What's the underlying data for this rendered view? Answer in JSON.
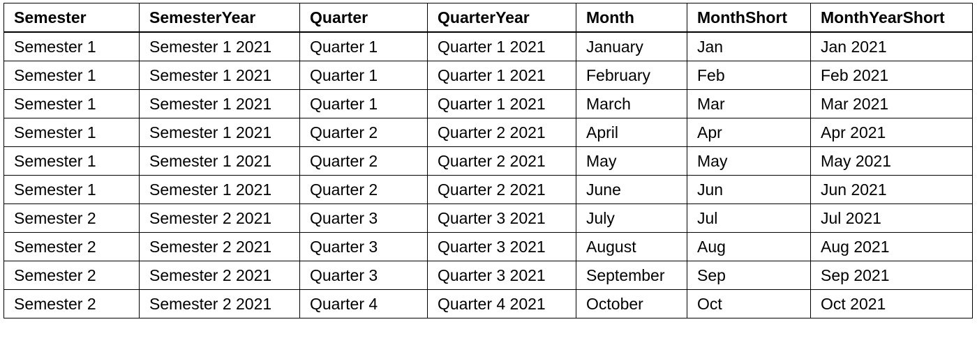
{
  "table": {
    "headers": [
      "Semester",
      "SemesterYear",
      "Quarter",
      "QuarterYear",
      "Month",
      "MonthShort",
      "MonthYearShort"
    ],
    "rows": [
      [
        "Semester 1",
        "Semester 1 2021",
        "Quarter 1",
        "Quarter 1 2021",
        "January",
        "Jan",
        "Jan 2021"
      ],
      [
        "Semester 1",
        "Semester 1 2021",
        "Quarter 1",
        "Quarter 1 2021",
        "February",
        "Feb",
        "Feb 2021"
      ],
      [
        "Semester 1",
        "Semester 1 2021",
        "Quarter 1",
        "Quarter 1 2021",
        "March",
        "Mar",
        "Mar 2021"
      ],
      [
        "Semester 1",
        "Semester 1 2021",
        "Quarter 2",
        "Quarter 2 2021",
        "April",
        "Apr",
        "Apr 2021"
      ],
      [
        "Semester 1",
        "Semester 1 2021",
        "Quarter 2",
        "Quarter 2 2021",
        "May",
        "May",
        "May 2021"
      ],
      [
        "Semester 1",
        "Semester 1 2021",
        "Quarter 2",
        "Quarter 2 2021",
        "June",
        "Jun",
        "Jun 2021"
      ],
      [
        "Semester 2",
        "Semester 2 2021",
        "Quarter 3",
        "Quarter 3 2021",
        "July",
        "Jul",
        "Jul 2021"
      ],
      [
        "Semester 2",
        "Semester 2 2021",
        "Quarter 3",
        "Quarter 3 2021",
        "August",
        "Aug",
        "Aug 2021"
      ],
      [
        "Semester 2",
        "Semester 2 2021",
        "Quarter 3",
        "Quarter 3 2021",
        "September",
        "Sep",
        "Sep 2021"
      ],
      [
        "Semester 2",
        "Semester 2 2021",
        "Quarter 4",
        "Quarter 4 2021",
        "October",
        "Oct",
        "Oct 2021"
      ]
    ]
  }
}
